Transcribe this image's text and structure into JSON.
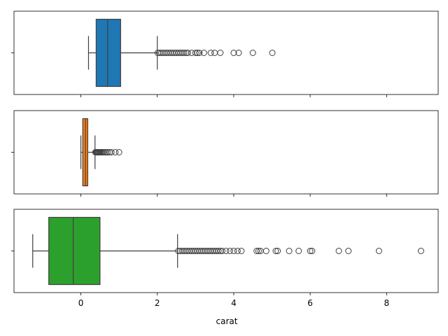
{
  "chart_data": {
    "type": "boxplot",
    "orientation": "horizontal",
    "xlabel": "carat",
    "xlim": [
      -1.75,
      9.35
    ],
    "xticks": [
      0,
      2,
      4,
      6,
      8
    ],
    "xtick_labels": [
      "0",
      "2",
      "4",
      "6",
      "8"
    ],
    "shared_x": true,
    "colors": [
      "#1f77b4",
      "#ff7f0e",
      "#2ca02c"
    ],
    "panels": [
      {
        "whisker_low": 0.2,
        "q1": 0.4,
        "median": 0.7,
        "q3": 1.04,
        "whisker_high": 2.0,
        "fliers": [
          2.01,
          2.05,
          2.1,
          2.15,
          2.2,
          2.25,
          2.3,
          2.35,
          2.4,
          2.45,
          2.5,
          2.55,
          2.6,
          2.65,
          2.7,
          2.75,
          2.8,
          2.9,
          3.0,
          3.05,
          3.1,
          3.22,
          3.4,
          3.5,
          3.65,
          4.0,
          4.13,
          4.5,
          5.01
        ]
      },
      {
        "whisker_low": 0.0,
        "q1": 0.05,
        "median": 0.12,
        "q3": 0.18,
        "whisker_high": 0.37,
        "fliers": [
          0.38,
          0.4,
          0.42,
          0.44,
          0.46,
          0.48,
          0.5,
          0.52,
          0.55,
          0.58,
          0.62,
          0.66,
          0.7,
          0.75,
          0.8,
          0.9,
          1.0
        ]
      },
      {
        "whisker_low": -1.26,
        "q1": -0.84,
        "median": -0.2,
        "q3": 0.5,
        "whisker_high": 2.53,
        "fliers": [
          2.55,
          2.6,
          2.65,
          2.7,
          2.75,
          2.8,
          2.85,
          2.9,
          2.95,
          3.0,
          3.05,
          3.1,
          3.15,
          3.2,
          3.25,
          3.3,
          3.35,
          3.4,
          3.45,
          3.5,
          3.55,
          3.6,
          3.65,
          3.7,
          3.8,
          3.9,
          4.0,
          4.1,
          4.2,
          4.6,
          4.65,
          4.7,
          4.85,
          5.1,
          5.15,
          5.45,
          5.7,
          6.0,
          6.05,
          6.75,
          7.0,
          7.8,
          8.9
        ]
      }
    ]
  }
}
